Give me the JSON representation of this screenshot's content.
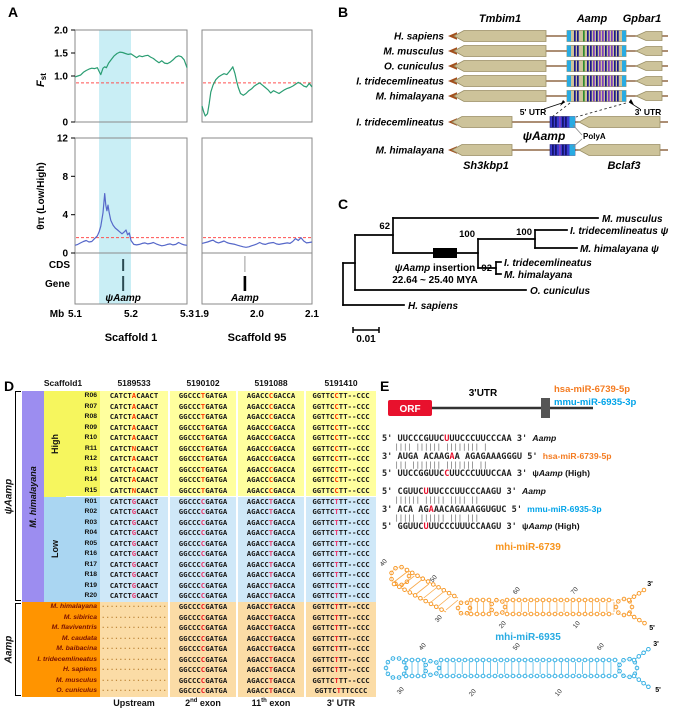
{
  "figure": {
    "panel_labels": {
      "a": "A",
      "b": "B",
      "c": "C",
      "d": "D",
      "e": "E"
    }
  },
  "chart_data": [
    {
      "type": "line",
      "name": "Fst Scaffold 1",
      "ylabel": "Fst",
      "xlim": [
        5.1,
        5.3
      ],
      "ylim": [
        0,
        2
      ],
      "threshold": 0.85,
      "highlight_band": [
        5.143,
        5.2
      ],
      "color": "#2a9d72",
      "x": [
        5.1,
        5.105,
        5.11,
        5.115,
        5.12,
        5.125,
        5.13,
        5.135,
        5.14,
        5.143,
        5.146,
        5.15,
        5.153,
        5.156,
        5.16,
        5.165,
        5.17,
        5.175,
        5.18,
        5.185,
        5.19,
        5.195,
        5.2,
        5.205,
        5.21,
        5.215,
        5.22,
        5.225,
        5.23,
        5.235,
        5.24,
        5.245,
        5.25,
        5.255,
        5.26,
        5.265,
        5.27,
        5.275,
        5.28,
        5.285,
        5.29,
        5.295,
        5.3
      ],
      "y": [
        0.98,
        1.0,
        1.02,
        1.08,
        1.12,
        1.15,
        1.17,
        1.16,
        1.18,
        1.1,
        1.03,
        1.17,
        1.2,
        1.18,
        1.28,
        1.36,
        1.44,
        1.49,
        1.52,
        1.51,
        1.49,
        1.47,
        1.48,
        1.44,
        1.4,
        1.44,
        1.42,
        1.44,
        1.45,
        1.41,
        1.38,
        1.33,
        1.29,
        1.33,
        1.28,
        1.27,
        1.3,
        1.35,
        1.41,
        1.44,
        1.42,
        1.35,
        1.18
      ]
    },
    {
      "type": "line",
      "name": "Fst Scaffold 95",
      "xlim": [
        1.9,
        2.1
      ],
      "ylim": [
        0,
        2
      ],
      "threshold": 0.85,
      "color": "#2a9d72",
      "x": [
        1.9,
        1.903,
        1.906,
        1.91,
        1.913,
        1.916,
        1.92,
        1.925,
        1.93,
        1.935,
        1.94,
        1.945,
        1.95,
        1.953,
        1.956,
        1.96,
        1.963,
        1.966,
        1.97,
        1.975,
        1.98,
        1.985,
        1.99,
        1.995,
        2.0,
        2.005,
        2.01,
        2.015,
        2.02,
        2.025,
        2.03,
        2.035,
        2.04,
        2.045,
        2.05,
        2.055,
        2.06,
        2.065,
        2.07,
        2.075,
        2.08,
        2.085,
        2.09,
        2.095,
        2.1
      ],
      "y": [
        0.35,
        0.22,
        0.13,
        0.18,
        0.4,
        0.65,
        0.8,
        0.92,
        0.98,
        1.02,
        1.05,
        1.03,
        1.1,
        1.15,
        1.2,
        1.05,
        0.88,
        0.75,
        0.62,
        0.58,
        0.62,
        0.68,
        0.72,
        0.78,
        0.82,
        0.85,
        0.8,
        0.75,
        0.7,
        0.63,
        0.68,
        0.65,
        0.62,
        0.66,
        0.7,
        0.73,
        0.75,
        0.78,
        0.82,
        0.86,
        0.83,
        0.78,
        0.76,
        0.84,
        0.76
      ]
    },
    {
      "type": "line",
      "name": "thetapi Scaffold 1",
      "ylabel": "θπ (Low/High)",
      "xlim": [
        5.1,
        5.3
      ],
      "ylim": [
        0,
        12
      ],
      "threshold": 1.6,
      "highlight_band": [
        5.143,
        5.2
      ],
      "color": "#5668c9",
      "x": [
        5.1,
        5.105,
        5.11,
        5.115,
        5.12,
        5.125,
        5.13,
        5.135,
        5.14,
        5.143,
        5.146,
        5.15,
        5.153,
        5.155,
        5.157,
        5.159,
        5.161,
        5.164,
        5.168,
        5.172,
        5.176,
        5.18,
        5.184,
        5.188,
        5.191,
        5.194,
        5.197,
        5.2,
        5.205,
        5.21,
        5.215,
        5.22,
        5.225,
        5.23,
        5.235,
        5.24,
        5.245,
        5.25,
        5.255,
        5.26,
        5.265,
        5.27,
        5.275,
        5.28,
        5.285,
        5.29,
        5.295,
        5.3
      ],
      "y": [
        0.8,
        0.9,
        1.05,
        1.2,
        1.3,
        1.15,
        1.2,
        1.5,
        1.8,
        2.2,
        2.8,
        4.2,
        6.2,
        5.0,
        4.4,
        5.0,
        4.2,
        3.4,
        2.9,
        2.6,
        2.4,
        2.2,
        2.0,
        2.2,
        2.4,
        1.9,
        2.1,
        1.3,
        0.9,
        0.85,
        0.9,
        1.0,
        1.05,
        0.95,
        1.0,
        1.1,
        0.95,
        0.85,
        0.75,
        0.8,
        0.9,
        0.95,
        0.85,
        0.9,
        1.1,
        0.95,
        0.85,
        0.8
      ]
    },
    {
      "type": "line",
      "name": "thetapi Scaffold 95",
      "xlim": [
        1.9,
        2.1
      ],
      "ylim": [
        0,
        12
      ],
      "threshold": 1.6,
      "color": "#5668c9",
      "x": [
        1.9,
        1.91,
        1.915,
        1.92,
        1.925,
        1.93,
        1.935,
        1.94,
        1.945,
        1.95,
        1.955,
        1.96,
        1.965,
        1.97,
        1.975,
        1.98,
        1.985,
        1.99,
        1.995,
        2.0,
        2.005,
        2.01,
        2.015,
        2.02,
        2.025,
        2.03,
        2.035,
        2.04,
        2.045,
        2.05,
        2.055,
        2.06,
        2.065,
        2.07,
        2.075,
        2.08,
        2.085,
        2.09,
        2.095,
        2.1
      ],
      "y": [
        1.0,
        1.15,
        1.25,
        1.35,
        1.15,
        1.05,
        1.15,
        1.25,
        1.1,
        1.0,
        0.95,
        0.9,
        0.8,
        0.72,
        0.65,
        0.6,
        0.65,
        0.75,
        0.85,
        0.95,
        1.1,
        0.95,
        0.9,
        1.0,
        1.05,
        1.1,
        0.95,
        0.9,
        0.95,
        1.0,
        1.05,
        1.0,
        1.2,
        1.5,
        1.3,
        1.6,
        1.25,
        1.05,
        1.1,
        1.15
      ]
    }
  ],
  "panel_a": {
    "fst_label_main": "F",
    "fst_label_sub": "st",
    "theta_label": "θπ (Low/High)",
    "cds": "CDS",
    "gene": "Gene",
    "mb": "Mb",
    "fst_yticks": [
      "2.0",
      "1.5",
      "1.0",
      "0"
    ],
    "theta_yticks": [
      "12",
      "8",
      "4",
      "0"
    ],
    "xticks_s1": [
      "5.1",
      "5.2",
      "5.3"
    ],
    "xticks_s95": [
      "1.9",
      "2.0",
      "2.1"
    ],
    "scaffold1": "Scaffold 1",
    "scaffold95": "Scaffold 95",
    "gene1": "ψAamp",
    "gene2": "Aamp"
  },
  "panel_b": {
    "tmbim1": "Tmbim1",
    "aamp": "Aamp",
    "gpbar1": "Gpbar1",
    "sh3kbp1": "Sh3kbp1",
    "bclaf3": "Bclaf3",
    "top_species": [
      "H. sapiens",
      "M. musculus",
      "O. cuniculus",
      "I. tridecemlineatus",
      "M. himalayana"
    ],
    "mid_species": "I. tridecemlineatus",
    "bottom_species": "M. himalayana",
    "utr5": "5' UTR",
    "utr3": "3' UTR",
    "psi_aamp": "ψAamp",
    "polya": "PolyA"
  },
  "panel_c": {
    "tips": [
      "M. musculus",
      "I. tridecemlineatus ψ",
      "M. himalayana ψ",
      "I. tridecemlineatus",
      "M. himalayana",
      "O. cuniculus",
      "H. sapiens"
    ],
    "bootstrap": {
      "b62": "62",
      "b100a": "100",
      "b100b": "100",
      "b92": "92"
    },
    "insertion_gene": "ψAamp",
    "insertion_word": " insertion",
    "insertion_date": "22.64 ~ 25.40 MYA",
    "scale": "0.01"
  },
  "panel_d": {
    "scaffold": "Scaffold1",
    "positions": [
      "5189533",
      "5190102",
      "5191088",
      "5191410"
    ],
    "psi_bracket": "ψAamp",
    "purple_label": "M. himalayana",
    "high_label": "High",
    "low_label": "Low",
    "aamp_bracket": "Aamp",
    "high_rows": [
      {
        "id": "R06",
        "c": [
          "CATCT[A]CAACT",
          "GGCCC[T]GATGA",
          "AGACC[C]GACCA",
          "GGTTC[C]TT--CCC"
        ]
      },
      {
        "id": "R07",
        "c": [
          "CATCT[A]CAACT",
          "GGCCC[T]GATGA",
          "AGACC[C]GACCA",
          "GGTTC[C]TT--CCC"
        ]
      },
      {
        "id": "R08",
        "c": [
          "CATCT[A]CAACT",
          "GGCCC[T]GATGA",
          "AGACC[C]GACCA",
          "GGTTC[C]TT--CCC"
        ]
      },
      {
        "id": "R09",
        "c": [
          "CATCT[A]CAACT",
          "GGCCC[T]GATGA",
          "AGACC[C]GACCA",
          "GGTTC[C]TT--CCC"
        ]
      },
      {
        "id": "R10",
        "c": [
          "CATCT[A]CAACT",
          "GGCCC[T]GATGA",
          "AGACC[C]GACCA",
          "GGTTC[C]TT--CCC"
        ]
      },
      {
        "id": "R11",
        "c": [
          "CATCT[N]CAACT",
          "GGCCC[T]GATGA",
          "AGACC[C]GACCA",
          "GGTTC[C]TT--CCC"
        ]
      },
      {
        "id": "R12",
        "c": [
          "CATCT[A]CAACT",
          "GGCCC[T]GATGA",
          "AGACC[C]GACCA",
          "GGTTC[C]TT--CCC"
        ]
      },
      {
        "id": "R13",
        "c": [
          "CATCT[A]CAACT",
          "GGCCC[T]GATGA",
          "AGACC[C]GACCA",
          "GGTTC[C]TT--CCC"
        ]
      },
      {
        "id": "R14",
        "c": [
          "CATCT[A]CAACT",
          "GGCCC[T]GATGA",
          "AGACC[C]GACCA",
          "GGTTC[C]TT--CCC"
        ]
      },
      {
        "id": "R15",
        "c": [
          "CATCT[N]CAACT",
          "GGCCC[T]GATGA",
          "AGACC[C]GACCA",
          "GGTTC[C]TT--CCC"
        ]
      }
    ],
    "low_rows": [
      {
        "id": "R01",
        "c": [
          "CATCT[G]CAACT",
          "GGCCC[C]GATGA",
          "AGACC[T]GACCA",
          "GGTTC[T]TT--CCC"
        ]
      },
      {
        "id": "R02",
        "c": [
          "CATCT[G]CAACT",
          "GGCCC[C]GATGA",
          "AGACC[T]GACCA",
          "GGTTC[T]TT--CCC"
        ]
      },
      {
        "id": "R03",
        "c": [
          "CATCT[G]CAACT",
          "GGCCC[C]GATGA",
          "AGACC[T]GACCA",
          "GGTTC[T]TT--CCC"
        ]
      },
      {
        "id": "R04",
        "c": [
          "CATCT[G]CAACT",
          "GGCCC[C]GATGA",
          "AGACC[T]GACCA",
          "GGTTC[T]TT--CCC"
        ]
      },
      {
        "id": "R05",
        "c": [
          "CATCT[G]CAACT",
          "GGCCC[C]GATGA",
          "AGACC[T]GACCA",
          "GGTTC[T]TT--CCC"
        ]
      },
      {
        "id": "R16",
        "c": [
          "CATCT[G]CAACT",
          "GGCCC[C]GATGA",
          "AGACC[T]GACCA",
          "GGTTC[T]TT--CCC"
        ]
      },
      {
        "id": "R17",
        "c": [
          "CATCT[G]CAACT",
          "GGCCC[C]GATGA",
          "AGACC[T]GACCA",
          "GGTTC[T]TT--CCC"
        ]
      },
      {
        "id": "R18",
        "c": [
          "CATCT[G]CAACT",
          "GGCCC[C]GATGA",
          "AGACC[T]GACCA",
          "GGTTC[T]TT--CCC"
        ]
      },
      {
        "id": "R19",
        "c": [
          "CATCT[G]CAACT",
          "GGCCC[C]GATGA",
          "AGACC[T]GACCA",
          "GGTTC[T]TT--CCC"
        ]
      },
      {
        "id": "R20",
        "c": [
          "CATCT[G]CAACT",
          "GGCCC[C]GATGA",
          "AGACC[T]GACCA",
          "GGTTC[T]TT--CCC"
        ]
      }
    ],
    "aamp_rows": [
      {
        "name": "M. himalayana",
        "c": [
          "dots",
          "GGCCC[C]GATGA",
          "AGACC[T]GACCA",
          "GGTTC[T]TT--CCC"
        ]
      },
      {
        "name": "M. sibirica",
        "c": [
          "dots",
          "GGCCC[C]GATGA",
          "AGACC[T]GACCA",
          "GGTTC[T]TT--CCC"
        ]
      },
      {
        "name": "M. flaviventris",
        "c": [
          "dots",
          "GGCCC[C]GATGA",
          "AGACC[T]GACCA",
          "GGTTC[T]TT--CCC"
        ]
      },
      {
        "name": "M. caudata",
        "c": [
          "dots",
          "GGCCC[C]GATGA",
          "AGACC[T]GACCA",
          "GGTTC[T]TT--CCC"
        ]
      },
      {
        "name": "M. baibacina",
        "c": [
          "dots",
          "GGCCC[C]GATGA",
          "AGACC[T]GACCA",
          "GGTTC[T]TT--CCC"
        ]
      },
      {
        "name": "I. tridecemlineatus",
        "c": [
          "dots",
          "GGCCC[C]GATGA",
          "AGACC[T]GACCA",
          "GGTTC[T]TT--CCC"
        ]
      },
      {
        "name": "H. sapiens",
        "c": [
          "dots",
          "GGCCC[C]GATGA",
          "AGACC[T]GACCA",
          "GGTTC[T]TT--CCC"
        ]
      },
      {
        "name": "M. musculus",
        "c": [
          "dots",
          "GGCCC[C]GATGA",
          "AGACC[T]GACCA",
          "GGTTC[T]TT--CCC"
        ]
      },
      {
        "name": "O. cuniculus",
        "c": [
          "dots",
          "GGCCC[C]GATGA",
          "AGACC[T]GACCA",
          "GGTTC[T]TTCCCC"
        ]
      }
    ],
    "footer": [
      "Upstream",
      "2^{nd} exon",
      "11^{th} exon",
      "3' UTR"
    ],
    "colors": {
      "high_red": "#ff3800",
      "low_red": "#e8356b",
      "aamp_red": "#ee1c25"
    }
  },
  "panel_e": {
    "orf": "ORF",
    "utr3": "3'UTR",
    "mir1": "hsa-miR-6739-5p",
    "mir2": "mmu-miR-6935-3p",
    "align1_rows": [
      {
        "pre": "5' ",
        "seq": "UUCCCGUUC[U]UUCCCUUCCCAA",
        "post": " 3' ",
        "name": [
          [
            "Aamp",
            "gene"
          ]
        ]
      },
      {
        "bars": "|||| |||||| |||||||| |"
      },
      {
        "pre": "3' ",
        "seq": "AUGA ACAAG[A]A AGAGAAAGGGU",
        "post": " 5' ",
        "name": [
          [
            "hsa-miR-6739-5p",
            "mir1"
          ]
        ]
      },
      {
        "bars": "||| ||||||| ||||||| ||"
      },
      {
        "pre": "5' ",
        "seq": "UUCCGGUUC[C]UUCCCUUUCCAA",
        "post": " 3' ",
        "name": [
          [
            "ψ",
            "plain"
          ],
          [
            "Aamp",
            "gene"
          ],
          [
            " (High)",
            "plain"
          ]
        ]
      }
    ],
    "align2_rows": [
      {
        "pre": "5' ",
        "seq": "CGUUC[U]UUCCCUUCCCAAGU",
        "post": " 3' ",
        "name": [
          [
            "Aamp",
            "gene"
          ]
        ]
      },
      {
        "bars": "|||||| ||||| |||| ||"
      },
      {
        "pre": "3' ",
        "seq": "ACA AG[A]AACAGAAAGGUGUC",
        "post": " 5' ",
        "name": [
          [
            "mmu-miR-6935-3p",
            "mir2"
          ]
        ]
      },
      {
        "bars": "||||| |||||| ||| |||"
      },
      {
        "pre": "5' ",
        "seq": "GGUUC[U]UUCCCUUUCCAAGU",
        "post": " 3' ",
        "name": [
          [
            "ψ",
            "plain"
          ],
          [
            "Aamp",
            "gene"
          ],
          [
            " (High)",
            "plain"
          ]
        ]
      }
    ],
    "structures": [
      {
        "name": "mhi-miR-6739",
        "color": "#f7941d",
        "nums": [
          "40",
          "50",
          "30",
          "20",
          "60",
          "70",
          "10"
        ],
        "end3": "3'",
        "end5": "5'"
      },
      {
        "name": "mhi-miR-6935",
        "color": "#29abe2",
        "nums": [
          "40",
          "50",
          "60",
          "30",
          "20",
          "10"
        ],
        "end3": "3'",
        "end5": "5'"
      }
    ]
  }
}
